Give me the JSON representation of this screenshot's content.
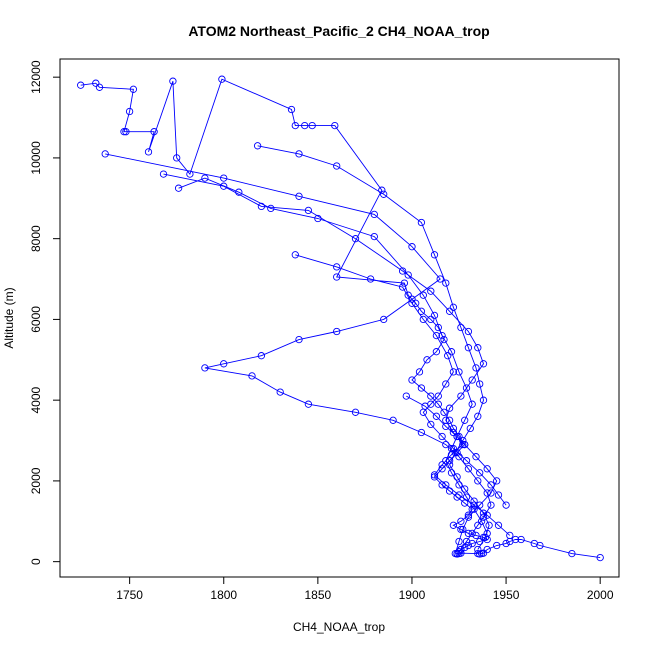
{
  "chart_data": {
    "type": "scatter",
    "title": "ATOM2 Northeast_Pacific_2 CH4_NOAA_trop",
    "xlabel": "CH4_NOAA_trop",
    "ylabel": "Altitude (m)",
    "xlim": [
      1713,
      2010
    ],
    "ylim": [
      -380,
      12450
    ],
    "xticks": [
      1750,
      1800,
      1850,
      1900,
      1950,
      2000
    ],
    "xtick_labels": [
      "1750",
      "1800",
      "1850",
      "1900",
      "1950",
      "2000"
    ],
    "yticks": [
      0,
      2000,
      4000,
      6000,
      8000,
      10000,
      12000
    ],
    "ytick_labels": [
      "0",
      "2000",
      "4000",
      "6000",
      "8000",
      "10000",
      "12000"
    ],
    "grid": false,
    "legend": "none",
    "marker": "open-circle",
    "connect_points": true,
    "series_color": "#0000ff",
    "series": [
      {
        "name": "",
        "x": [
          1724,
          1732,
          1734,
          1752,
          1750,
          1747,
          1748,
          1763,
          1760,
          1773,
          1775,
          1782,
          1799,
          1836,
          1838,
          1843,
          1847,
          1859,
          1884,
          1860,
          1896,
          1898,
          1902,
          1905,
          1910,
          1914,
          1917,
          1913,
          1908,
          1904,
          1900,
          1905,
          1910,
          1914,
          1917,
          1920,
          1922,
          1925,
          1928,
          1924,
          1920,
          1916,
          1912,
          1916,
          1920,
          1924,
          1928,
          1932,
          1930,
          1926,
          1922,
          1926,
          1930,
          1934,
          1938,
          1940,
          1936,
          1932,
          1930,
          1928,
          1926,
          1925,
          1924,
          1924,
          1925,
          1926,
          1935,
          1936,
          1937,
          1938,
          1940,
          1945,
          1950,
          1952,
          1955,
          1958,
          1965,
          1968,
          1985,
          2000
        ],
        "y": [
          11800,
          11850,
          11750,
          11700,
          11150,
          10650,
          10650,
          10650,
          10150,
          11900,
          10000,
          9600,
          11950,
          11200,
          10800,
          10800,
          10800,
          10800,
          9200,
          7050,
          6900,
          6600,
          6400,
          6200,
          6000,
          5800,
          5500,
          5200,
          5000,
          4700,
          4500,
          4300,
          4100,
          3900,
          3700,
          3500,
          3300,
          3100,
          2900,
          2700,
          2500,
          2300,
          2100,
          1900,
          1750,
          1600,
          1450,
          1300,
          1150,
          1000,
          900,
          800,
          700,
          650,
          600,
          550,
          500,
          450,
          400,
          350,
          300,
          250,
          200,
          190,
          200,
          210,
          200,
          190,
          200,
          210,
          300,
          400,
          450,
          500,
          550,
          550,
          450,
          400,
          200,
          100
        ]
      },
      {
        "name": "",
        "x": [
          1737,
          1800,
          1840,
          1880,
          1900,
          1915,
          1900,
          1885,
          1860,
          1840,
          1820,
          1800,
          1790,
          1815,
          1830,
          1845,
          1870,
          1890,
          1905,
          1918,
          1925,
          1930,
          1935,
          1940,
          1942,
          1938,
          1935,
          1932,
          1929,
          1926
        ],
        "y": [
          10100,
          9500,
          9050,
          8600,
          7800,
          7000,
          6500,
          6000,
          5700,
          5500,
          5100,
          4900,
          4800,
          4600,
          4200,
          3900,
          3700,
          3500,
          3200,
          2900,
          2600,
          2300,
          2000,
          1700,
          1400,
          1100,
          900,
          700,
          500,
          300
        ]
      },
      {
        "name": "",
        "x": [
          1768,
          1800,
          1820,
          1845,
          1870,
          1895,
          1910,
          1920,
          1930,
          1935,
          1938,
          1932,
          1926,
          1920,
          1918,
          1922,
          1928,
          1934,
          1940,
          1945,
          1942,
          1936,
          1930,
          1927,
          1925,
          1923
        ],
        "y": [
          9600,
          9300,
          8800,
          8700,
          8000,
          7200,
          6700,
          6200,
          5700,
          5300,
          4900,
          4500,
          4100,
          3800,
          3500,
          3200,
          2900,
          2600,
          2300,
          2000,
          1700,
          1400,
          1100,
          800,
          500,
          200
        ]
      },
      {
        "name": "",
        "x": [
          1818,
          1840,
          1860,
          1885,
          1905,
          1912,
          1918,
          1922,
          1926,
          1930,
          1934,
          1936,
          1938,
          1935,
          1931,
          1927,
          1923,
          1920,
          1924,
          1928,
          1933,
          1938,
          1941,
          1939,
          1935
        ],
        "y": [
          10300,
          10100,
          9800,
          9100,
          8400,
          7600,
          6900,
          6300,
          5800,
          5300,
          4800,
          4400,
          4000,
          3600,
          3300,
          3000,
          2700,
          2400,
          2100,
          1800,
          1500,
          1200,
          900,
          600,
          300
        ]
      },
      {
        "name": "",
        "x": [
          1776,
          1790,
          1808,
          1825,
          1850,
          1880,
          1898,
          1906,
          1912,
          1916,
          1921,
          1925,
          1929,
          1932,
          1928,
          1924,
          1921,
          1918,
          1921,
          1925,
          1929,
          1933,
          1937,
          1940
        ],
        "y": [
          9250,
          9500,
          9150,
          8750,
          8500,
          8050,
          7100,
          6600,
          6100,
          5600,
          5200,
          4700,
          4300,
          3900,
          3500,
          3100,
          2800,
          2500,
          2200,
          1900,
          1600,
          1300,
          1000,
          700
        ]
      },
      {
        "name": "",
        "x": [
          1838,
          1860,
          1878,
          1895,
          1900,
          1906,
          1913,
          1919,
          1922,
          1918,
          1914,
          1910,
          1906,
          1910,
          1916,
          1922,
          1929,
          1936,
          1942,
          1946,
          1950
        ],
        "y": [
          7600,
          7300,
          7000,
          6800,
          6400,
          6000,
          5600,
          5100,
          4700,
          4400,
          4100,
          3900,
          3700,
          3400,
          3100,
          2800,
          2500,
          2200,
          1900,
          1650,
          1400
        ]
      },
      {
        "name": "",
        "x": [
          1897,
          1907,
          1913,
          1918,
          1924,
          1927,
          1921,
          1916,
          1912,
          1918,
          1925,
          1933,
          1940,
          1946,
          1952
        ],
        "y": [
          4100,
          3850,
          3600,
          3350,
          3100,
          2900,
          2650,
          2400,
          2150,
          1900,
          1650,
          1400,
          1150,
          900,
          650
        ]
      }
    ]
  }
}
